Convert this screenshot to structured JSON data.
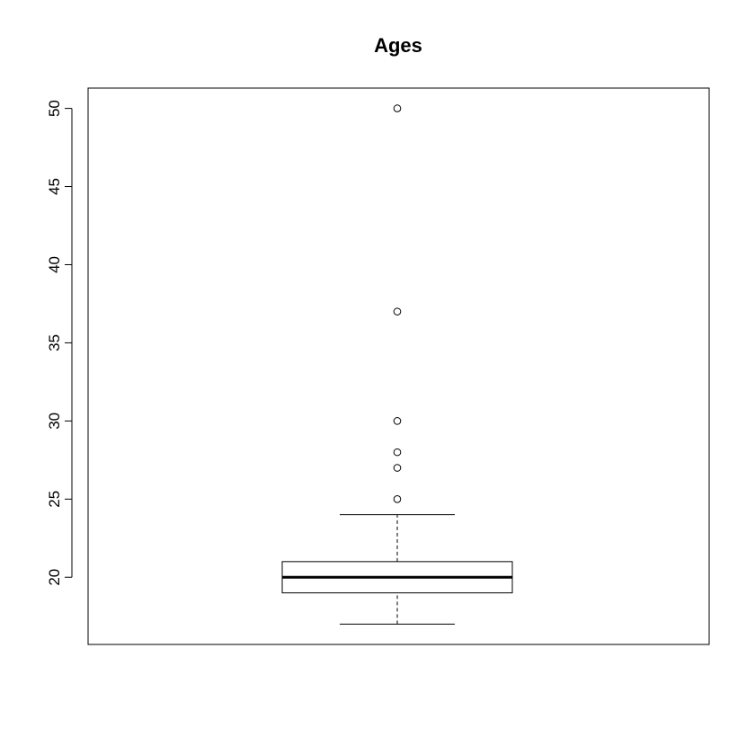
{
  "chart_data": {
    "type": "boxplot",
    "title": "Ages",
    "xlabel": "",
    "ylabel": "",
    "ylim": [
      15.7,
      51.3
    ],
    "yticks": [
      20,
      25,
      30,
      35,
      40,
      45,
      50
    ],
    "grid": false,
    "legend": "none",
    "box": {
      "whisker_low": 17,
      "q1": 19,
      "median": 20,
      "q3": 21,
      "whisker_high": 24
    },
    "outliers": [
      25,
      27,
      28,
      30,
      37,
      50
    ],
    "colors": {
      "stroke": "#000000",
      "background": "#ffffff"
    }
  }
}
